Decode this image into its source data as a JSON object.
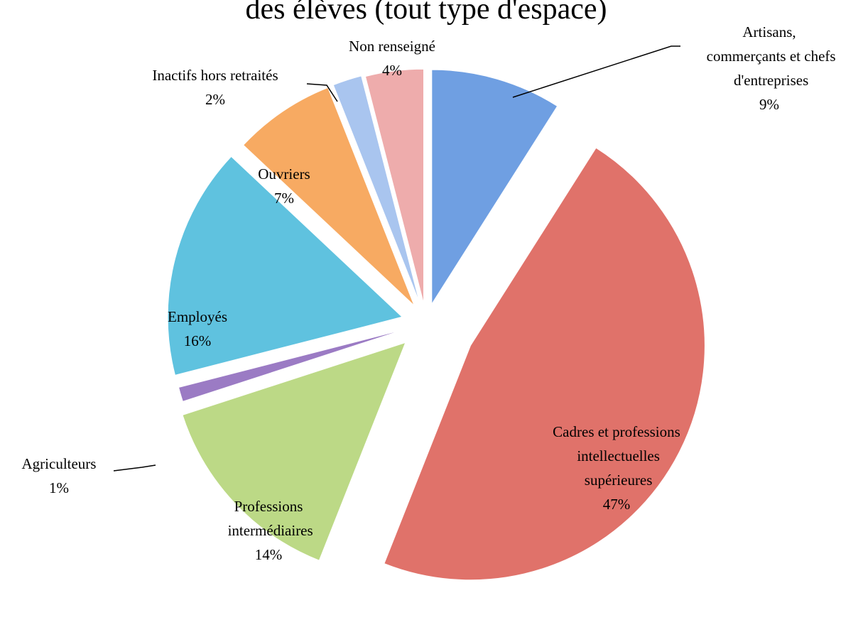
{
  "chart_data": {
    "type": "pie",
    "title": "des élèves (tout type d'espace)",
    "categories": [
      "Artisans, commerçants et chefs d'entreprises",
      "Cadres et professions intellectuelles supérieures",
      "Professions intermédiaires",
      "Agriculteurs",
      "Employés",
      "Ouvriers",
      "Inactifs hors retraités",
      "Non renseigné"
    ],
    "values": [
      9,
      47,
      14,
      1,
      16,
      7,
      2,
      4
    ],
    "value_labels": [
      "9%",
      "47%",
      "14%",
      "1%",
      "16%",
      "7%",
      "2%",
      "4%"
    ],
    "colors": [
      "#6f9fe2",
      "#e0726a",
      "#bcd986",
      "#9b7bc4",
      "#5fc2df",
      "#f7aa62",
      "#a9c5ef",
      "#eeacac"
    ]
  }
}
